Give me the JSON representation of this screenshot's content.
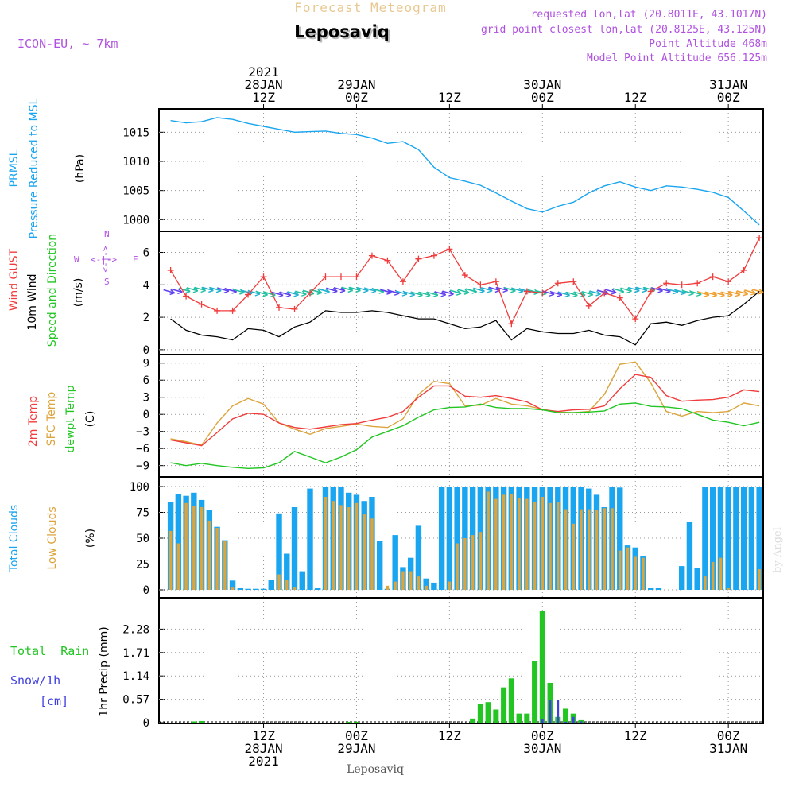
{
  "header": {
    "product": "Forecast Meteogram",
    "location": "Leposaviq",
    "model": "ICON-EU, ~ 7km",
    "requested": "requested lon,lat (20.8011E, 43.1017N)",
    "closest": "grid point closest lon,lat (20.8125E, 43.125N)",
    "point_alt": "Point Altitude 468m",
    "model_alt": "Model Point Altitude 656.125m",
    "footer": "Leposaviq",
    "watermark": "by Angel"
  },
  "colors": {
    "pressure": "#1aa5f0",
    "gust": "#f03c3c",
    "wind": "#000000",
    "dir_green": "#22c522",
    "temp2m": "#f03c3c",
    "sfc": "#dca43c",
    "dew": "#22c522",
    "total_clouds": "#1aa5f0",
    "low_clouds": "#dca43c",
    "rain": "#22c522",
    "snow": "#4040e0",
    "purple": "#b050e0"
  },
  "time_axis": {
    "top_labels": [
      {
        "h": 12,
        "lines": [
          "2021",
          "28JAN",
          "12Z"
        ]
      },
      {
        "h": 24,
        "lines": [
          "29JAN",
          "00Z"
        ]
      },
      {
        "h": 36,
        "lines": [
          "12Z"
        ]
      },
      {
        "h": 48,
        "lines": [
          "30JAN",
          "00Z"
        ]
      },
      {
        "h": 60,
        "lines": [
          "12Z"
        ]
      },
      {
        "h": 72,
        "lines": [
          "31JAN",
          "00Z"
        ]
      }
    ],
    "bottom_labels": [
      {
        "h": 12,
        "lines": [
          "12Z",
          "28JAN",
          "2021"
        ]
      },
      {
        "h": 24,
        "lines": [
          "00Z",
          "29JAN"
        ]
      },
      {
        "h": 36,
        "lines": [
          "12Z"
        ]
      },
      {
        "h": 48,
        "lines": [
          "00Z",
          "30JAN"
        ]
      },
      {
        "h": 60,
        "lines": [
          "12Z"
        ]
      },
      {
        "h": 72,
        "lines": [
          "00Z",
          "31JAN"
        ]
      }
    ]
  },
  "panels": {
    "pressure": {
      "labels": [
        "PRMSL",
        "Pressure Reduced to MSL"
      ],
      "unit": "(hPa)",
      "ticks": [
        "1015",
        "1010",
        "1005",
        "1000"
      ]
    },
    "wind": {
      "labels": [
        "Wind GUST",
        "10m Wind",
        "Speed and Direction"
      ],
      "unit": "(m/s)",
      "ticks": [
        "6",
        "4",
        "2",
        "0"
      ],
      "compass": {
        "n": "N",
        "s": "S",
        "e": "E",
        "w": "W",
        "ns": "<-|->",
        "we": "<-|->"
      }
    },
    "temp": {
      "labels": [
        "2m Temp",
        "SFC Temp",
        "dewpt Temp"
      ],
      "unit": "(C)",
      "ticks": [
        "9",
        "6",
        "3",
        "0",
        "−3",
        "−6",
        "−9"
      ]
    },
    "clouds": {
      "labels": [
        "Total Clouds",
        "Low Clouds"
      ],
      "unit": "(%)",
      "ticks": [
        "100",
        "75",
        "50",
        "25",
        "0"
      ]
    },
    "precip": {
      "labels": [
        "Total  Rain",
        "Snow/1h",
        "[cm]"
      ],
      "unit": "1hr Precip (mm)",
      "ticks": [
        "2.28",
        "1.71",
        "1.14",
        "0.57",
        "0"
      ]
    }
  },
  "chart_data": [
    {
      "type": "line",
      "title": "PRMSL Pressure Reduced to MSL",
      "ylabel": "hPa",
      "ylim": [
        998,
        1019
      ],
      "x_hours": [
        0,
        2,
        4,
        6,
        8,
        10,
        12,
        14,
        16,
        18,
        20,
        22,
        24,
        26,
        28,
        30,
        32,
        34,
        36,
        38,
        40,
        42,
        44,
        46,
        48,
        50,
        52,
        54,
        56,
        58,
        60,
        62,
        64,
        66,
        68,
        70,
        72,
        74,
        76
      ],
      "values": [
        1017.0,
        1016.6,
        1016.8,
        1017.5,
        1017.2,
        1016.5,
        1016.0,
        1015.5,
        1015.0,
        1015.1,
        1015.2,
        1014.8,
        1014.6,
        1014.0,
        1013.1,
        1013.4,
        1012.0,
        1009.0,
        1007.2,
        1006.6,
        1005.9,
        1004.6,
        1003.2,
        1001.9,
        1001.3,
        1002.3,
        1003.0,
        1004.6,
        1005.8,
        1006.5,
        1005.6,
        1005.0,
        1005.8,
        1005.6,
        1005.2,
        1004.7,
        1003.8,
        1001.5,
        999.1
      ]
    },
    {
      "type": "line",
      "title": "Wind GUST / 10m Wind",
      "ylabel": "m/s",
      "ylim": [
        -0.3,
        7.3
      ],
      "x_hours": [
        0,
        2,
        4,
        6,
        8,
        10,
        12,
        14,
        16,
        18,
        20,
        22,
        24,
        26,
        28,
        30,
        32,
        34,
        36,
        38,
        40,
        42,
        44,
        46,
        48,
        50,
        52,
        54,
        56,
        58,
        60,
        62,
        64,
        66,
        68,
        70,
        72,
        74,
        76
      ],
      "series": [
        {
          "name": "Wind GUST",
          "values": [
            4.9,
            3.3,
            2.8,
            2.4,
            2.4,
            3.4,
            4.5,
            2.6,
            2.5,
            3.5,
            4.5,
            4.5,
            4.5,
            5.8,
            5.5,
            4.2,
            5.6,
            5.8,
            6.2,
            4.6,
            4.0,
            4.2,
            1.6,
            3.6,
            3.5,
            4.1,
            4.2,
            2.7,
            3.5,
            3.2,
            1.9,
            3.6,
            4.1,
            4.0,
            4.1,
            4.5,
            4.2,
            4.9,
            6.9
          ]
        },
        {
          "name": "10m Wind",
          "values": [
            1.9,
            1.2,
            0.9,
            0.8,
            0.6,
            1.3,
            1.2,
            0.8,
            1.4,
            1.7,
            2.4,
            2.3,
            2.3,
            2.4,
            2.3,
            2.1,
            1.9,
            1.9,
            1.6,
            1.3,
            1.4,
            1.8,
            0.6,
            1.3,
            1.1,
            1.0,
            1.0,
            1.2,
            0.9,
            0.8,
            0.3,
            1.6,
            1.7,
            1.5,
            1.8,
            2.0,
            2.1,
            2.8,
            3.6
          ]
        }
      ]
    },
    {
      "type": "line",
      "title": "2m Temp / SFC Temp / dewpt Temp",
      "ylabel": "C",
      "ylim": [
        -11,
        10.5
      ],
      "x_hours": [
        0,
        2,
        4,
        6,
        8,
        10,
        12,
        14,
        16,
        18,
        20,
        22,
        24,
        26,
        28,
        30,
        32,
        34,
        36,
        38,
        40,
        42,
        44,
        46,
        48,
        50,
        52,
        54,
        56,
        58,
        60,
        62,
        64,
        66,
        68,
        70,
        72,
        74,
        76
      ],
      "series": [
        {
          "name": "2m Temp",
          "values": [
            -4.5,
            -5,
            -5.5,
            -3.2,
            -0.8,
            0.2,
            0,
            -1.5,
            -2.3,
            -2.6,
            -2.2,
            -1.8,
            -1.6,
            -1,
            -0.5,
            0.5,
            3,
            5,
            5,
            3.2,
            3,
            3.3,
            2.8,
            2.2,
            0.8,
            0.5,
            0.8,
            0.9,
            1.5,
            4.5,
            7,
            6.5,
            3.3,
            2.3,
            2.5,
            2.6,
            3,
            4.3,
            4
          ]
        },
        {
          "name": "SFC Temp",
          "values": [
            -4.3,
            -4.8,
            -5.4,
            -1.5,
            1.5,
            2.8,
            1.8,
            -1.5,
            -2.6,
            -3.5,
            -2.5,
            -2.1,
            -1.7,
            -2.1,
            -2.3,
            -0.8,
            3.5,
            5.8,
            5.4,
            1.5,
            1.6,
            2.8,
            1.8,
            1.5,
            0.9,
            0.4,
            0.3,
            0.5,
            3.5,
            8.8,
            9.2,
            5.5,
            0.5,
            -0.3,
            0.5,
            0.3,
            0.5,
            2,
            1.5
          ]
        },
        {
          "name": "dewpt Temp",
          "values": [
            -8.5,
            -9,
            -8.6,
            -9,
            -9.3,
            -9.5,
            -9.4,
            -8.5,
            -6.5,
            -7.5,
            -8.5,
            -7.5,
            -6.2,
            -4,
            -3,
            -2,
            -0.5,
            0.8,
            1.2,
            1.3,
            1.8,
            1.2,
            1,
            1,
            0.8,
            0.3,
            0.3,
            0.4,
            0.6,
            1.8,
            2,
            1.4,
            1.3,
            1,
            0,
            -1,
            -1.4,
            -2,
            -1.4
          ]
        }
      ]
    },
    {
      "type": "bar",
      "title": "Total Clouds / Low Clouds",
      "ylabel": "%",
      "ylim": [
        0,
        100
      ],
      "x_hours": [
        0,
        1,
        2,
        3,
        4,
        5,
        6,
        7,
        8,
        9,
        10,
        11,
        12,
        13,
        14,
        15,
        16,
        17,
        18,
        19,
        20,
        21,
        22,
        23,
        24,
        25,
        26,
        27,
        28,
        29,
        30,
        31,
        32,
        33,
        34,
        35,
        36,
        37,
        38,
        39,
        40,
        41,
        42,
        43,
        44,
        45,
        46,
        47,
        48,
        49,
        50,
        51,
        52,
        53,
        54,
        55,
        56,
        57,
        58,
        59,
        60,
        61,
        62,
        63,
        64,
        65,
        66,
        67,
        68,
        69,
        70,
        71,
        72,
        73,
        74,
        75,
        76
      ],
      "series": [
        {
          "name": "Total Clouds",
          "values": [
            85,
            93,
            91,
            94,
            87,
            77,
            61,
            48,
            9,
            2,
            1,
            1,
            1,
            10,
            74,
            35,
            80,
            18,
            98,
            2,
            100,
            100,
            100,
            94,
            92,
            86,
            90,
            47,
            1,
            53,
            22,
            31,
            62,
            11,
            7,
            100,
            100,
            100,
            100,
            100,
            100,
            100,
            100,
            100,
            100,
            100,
            100,
            100,
            100,
            100,
            100,
            100,
            100,
            100,
            98,
            92,
            80,
            100,
            99,
            43,
            41,
            33,
            2,
            2,
            0,
            0,
            23,
            66,
            21,
            100,
            100,
            100,
            100,
            100,
            100,
            100,
            100
          ]
        },
        {
          "name": "Low Clouds",
          "values": [
            57,
            45,
            84,
            81,
            80,
            67,
            60,
            47,
            3,
            0,
            0,
            0,
            0,
            0,
            15,
            10,
            3,
            0,
            0,
            0,
            90,
            86,
            82,
            80,
            84,
            73,
            69,
            0,
            4,
            8,
            18,
            18,
            13,
            4,
            0,
            0,
            8,
            45,
            50,
            53,
            56,
            95,
            88,
            92,
            93,
            89,
            88,
            85,
            90,
            84,
            85,
            78,
            64,
            78,
            78,
            77,
            79,
            79,
            38,
            41,
            32,
            31,
            0,
            0,
            0,
            0,
            0,
            0,
            0,
            13,
            27,
            31,
            2,
            0,
            0,
            0,
            20
          ]
        }
      ]
    },
    {
      "type": "bar",
      "title": "1hr Precip",
      "ylabel": "mm",
      "ylim": [
        0,
        2.85
      ],
      "x_hours": [
        0,
        1,
        2,
        3,
        4,
        5,
        6,
        7,
        8,
        9,
        10,
        11,
        12,
        13,
        14,
        15,
        16,
        17,
        18,
        19,
        20,
        21,
        22,
        23,
        24,
        25,
        26,
        27,
        28,
        29,
        30,
        31,
        32,
        33,
        34,
        35,
        36,
        37,
        38,
        39,
        40,
        41,
        42,
        43,
        44,
        45,
        46,
        47,
        48,
        49,
        50,
        51,
        52,
        53,
        54,
        55,
        56,
        57,
        58,
        59,
        60,
        61,
        62,
        63,
        64,
        65,
        66,
        67,
        68,
        69,
        70,
        71,
        72,
        73,
        74,
        75,
        76
      ],
      "series": [
        {
          "name": "Total Rain",
          "values": [
            0,
            0,
            0,
            0.03,
            0.04,
            0,
            0,
            0,
            0,
            0,
            0,
            0,
            0,
            0,
            0,
            0,
            0,
            0,
            0,
            0,
            0,
            0,
            0,
            0.02,
            0.02,
            0,
            0,
            0,
            0,
            0,
            0,
            0,
            0,
            0,
            0,
            0,
            0,
            0,
            0,
            0.1,
            0.46,
            0.5,
            0.32,
            0.86,
            1.08,
            0.22,
            0.22,
            1.5,
            2.72,
            0.97,
            0.14,
            0.34,
            0.22,
            0.06,
            0,
            0,
            0,
            0,
            0,
            0,
            0,
            0,
            0,
            0,
            0,
            0,
            0,
            0,
            0,
            0,
            0,
            0,
            0,
            0,
            0,
            0,
            0
          ]
        },
        {
          "name": "Snow/1h",
          "values": [
            0,
            0,
            0,
            0,
            0,
            0,
            0,
            0,
            0,
            0,
            0,
            0,
            0,
            0,
            0,
            0,
            0,
            0,
            0,
            0,
            0,
            0,
            0,
            0,
            0,
            0,
            0,
            0,
            0,
            0,
            0,
            0,
            0,
            0,
            0,
            0,
            0,
            0,
            0,
            0,
            0,
            0,
            0,
            0,
            0,
            0,
            0,
            0,
            0.08,
            0.56,
            0.56,
            0.02,
            0.14,
            0.03,
            0,
            0,
            0,
            0,
            0,
            0,
            0,
            0,
            0,
            0,
            0,
            0,
            0,
            0,
            0,
            0,
            0,
            0,
            0,
            0,
            0,
            0,
            0
          ]
        }
      ]
    }
  ]
}
